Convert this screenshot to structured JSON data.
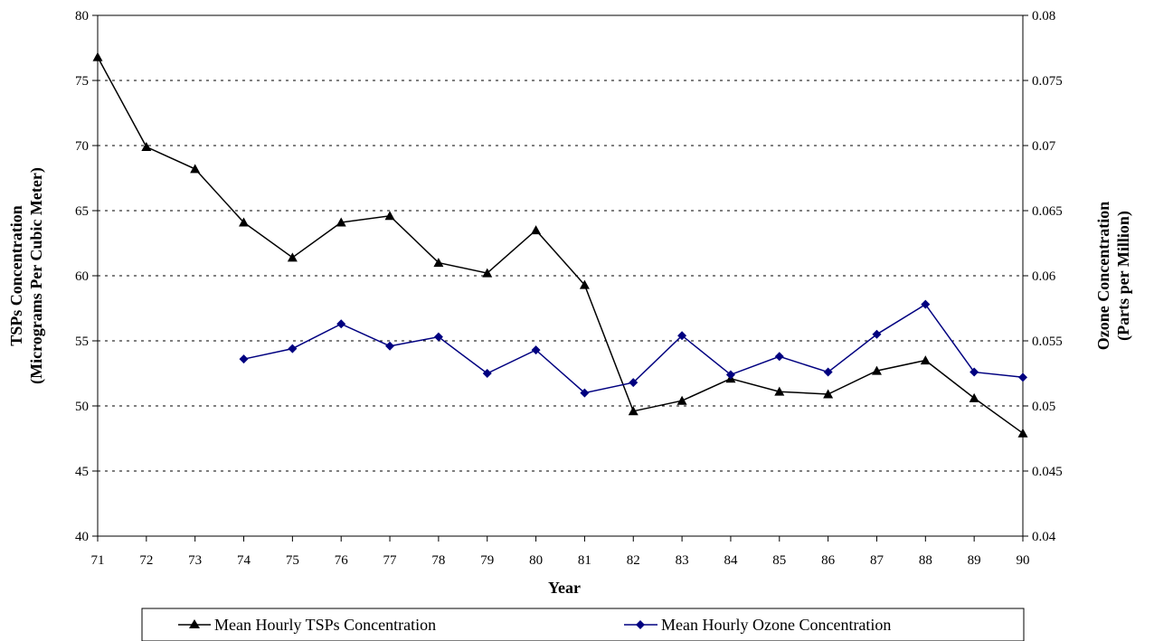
{
  "chart_data": {
    "type": "line",
    "xlabel": "Year",
    "ylabel_left_line1": "TSPs Concentration",
    "ylabel_left_line2": "(Micrograms Per Cubic Meter)",
    "ylabel_right_line1": "Ozone Concentration",
    "ylabel_right_line2": "(Parts per Million)",
    "x": [
      "71",
      "72",
      "73",
      "74",
      "75",
      "76",
      "77",
      "78",
      "79",
      "80",
      "81",
      "82",
      "83",
      "84",
      "85",
      "86",
      "87",
      "88",
      "89",
      "90"
    ],
    "ylim_left": [
      40,
      80
    ],
    "yticks_left": [
      "40",
      "45",
      "50",
      "55",
      "60",
      "65",
      "70",
      "75",
      "80"
    ],
    "ylim_right": [
      0.04,
      0.08
    ],
    "yticks_right": [
      "0.04",
      "0.045",
      "0.05",
      "0.055",
      "0.06",
      "0.065",
      "0.07",
      "0.075",
      "0.08"
    ],
    "grid": "horizontal dashed",
    "legend_position": "bottom",
    "series": [
      {
        "name": "Mean Hourly TSPs Concentration",
        "axis": "left",
        "color": "#000000",
        "marker": "triangle",
        "values": [
          76.8,
          69.9,
          68.2,
          64.1,
          61.4,
          64.1,
          64.6,
          61.0,
          60.2,
          63.5,
          59.3,
          49.6,
          50.4,
          52.1,
          51.1,
          50.9,
          52.7,
          53.5,
          50.6,
          47.9
        ]
      },
      {
        "name": "Mean Hourly Ozone Concentration",
        "axis": "right",
        "color": "#000080",
        "marker": "diamond",
        "values": [
          null,
          null,
          null,
          0.0536,
          0.0544,
          0.0563,
          0.0546,
          0.0553,
          0.0525,
          0.0543,
          0.051,
          0.0518,
          0.0554,
          0.0524,
          0.0538,
          0.0526,
          0.0555,
          0.0578,
          0.0526,
          0.0522
        ]
      }
    ]
  }
}
